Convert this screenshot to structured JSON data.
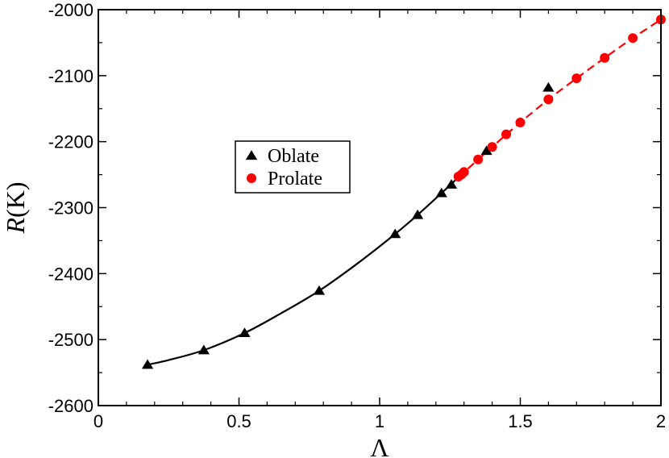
{
  "chart_data": {
    "type": "scatter",
    "xlabel": "Λ",
    "ylabel_italic": "R",
    "ylabel_rest": "(K)",
    "xlim": [
      0,
      2
    ],
    "ylim": [
      -2600,
      -2000
    ],
    "x_ticks": [
      0,
      0.5,
      1,
      1.5,
      2
    ],
    "x_tick_labels": [
      "0",
      "0.5",
      "1",
      "1.5",
      "2"
    ],
    "y_ticks": [
      -2600,
      -2500,
      -2400,
      -2300,
      -2200,
      -2100,
      -2000
    ],
    "y_tick_labels": [
      "-2600",
      "-2500",
      "-2400",
      "-2300",
      "-2200",
      "-2100",
      "-2000"
    ],
    "grid": false,
    "legend_placement": "center-left",
    "series": [
      {
        "name": "Oblate",
        "marker": "triangle",
        "color": "#000000",
        "points": [
          [
            0.175,
            -2538
          ],
          [
            0.375,
            -2516
          ],
          [
            0.52,
            -2490
          ],
          [
            0.785,
            -2426
          ],
          [
            1.055,
            -2340
          ],
          [
            1.135,
            -2311
          ],
          [
            1.22,
            -2278
          ],
          [
            1.255,
            -2265
          ],
          [
            1.38,
            -2214
          ],
          [
            1.6,
            -2118
          ]
        ]
      },
      {
        "name": "Prolate",
        "marker": "circle",
        "color": "#ff0000",
        "points": [
          [
            1.28,
            -2253
          ],
          [
            1.29,
            -2250
          ],
          [
            1.3,
            -2246
          ],
          [
            1.35,
            -2227
          ],
          [
            1.4,
            -2208
          ],
          [
            1.45,
            -2189
          ],
          [
            1.5,
            -2171
          ],
          [
            1.6,
            -2136
          ],
          [
            1.7,
            -2104
          ],
          [
            1.8,
            -2073
          ],
          [
            1.9,
            -2043
          ],
          [
            2.0,
            -2015
          ]
        ]
      }
    ],
    "fit_lines": [
      {
        "style": "solid",
        "color": "#000000",
        "points": [
          [
            0.175,
            -2538
          ],
          [
            0.25,
            -2531
          ],
          [
            0.375,
            -2516
          ],
          [
            0.52,
            -2490
          ],
          [
            0.65,
            -2460
          ],
          [
            0.785,
            -2426
          ],
          [
            0.92,
            -2385
          ],
          [
            1.055,
            -2340
          ],
          [
            1.135,
            -2311
          ],
          [
            1.22,
            -2278
          ],
          [
            1.28,
            -2254
          ]
        ]
      },
      {
        "style": "dashed",
        "color": "#ff0000",
        "points": [
          [
            1.28,
            -2254
          ],
          [
            1.4,
            -2208
          ],
          [
            1.5,
            -2171
          ],
          [
            1.6,
            -2136
          ],
          [
            1.7,
            -2104
          ],
          [
            1.8,
            -2073
          ],
          [
            1.9,
            -2043
          ],
          [
            2.0,
            -2015
          ]
        ]
      }
    ]
  }
}
